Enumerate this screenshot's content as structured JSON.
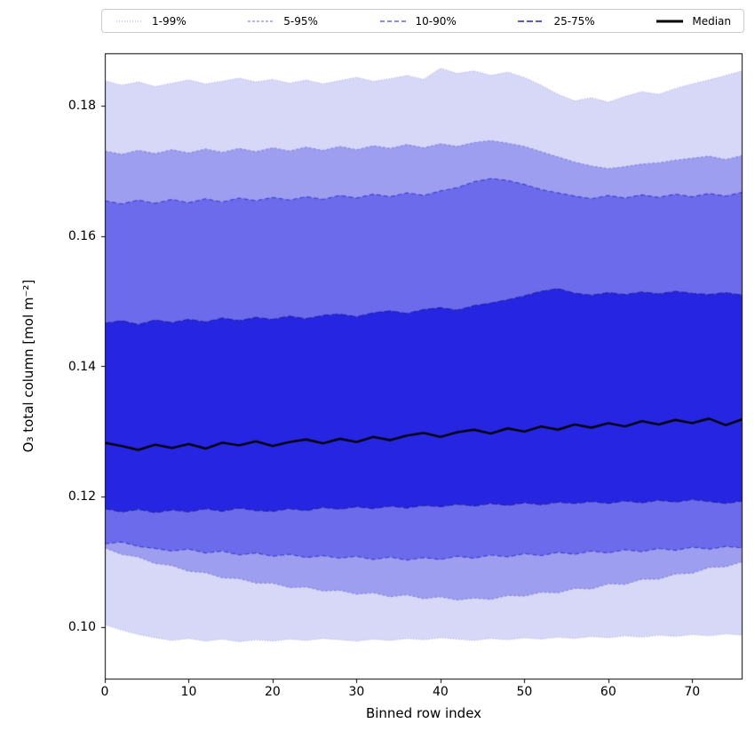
{
  "legend": {
    "entries": [
      {
        "label": "1-99%"
      },
      {
        "label": "5-95%"
      },
      {
        "label": "10-90%"
      },
      {
        "label": "25-75%"
      },
      {
        "label": "Median"
      }
    ]
  },
  "chart_data": {
    "type": "area",
    "title": "",
    "xlabel": "Binned row index",
    "ylabel": "O₃ total column [mol m⁻²]",
    "xlim": [
      0,
      76
    ],
    "ylim": [
      0.092,
      0.188
    ],
    "xticks": [
      0,
      10,
      20,
      30,
      40,
      50,
      60,
      70
    ],
    "yticks": [
      0.1,
      0.12,
      0.14,
      0.16,
      0.18
    ],
    "ytick_labels": [
      "0.10",
      "0.12",
      "0.14",
      "0.16",
      "0.18"
    ],
    "grid": false,
    "legend_position": "top",
    "x": [
      0,
      2,
      4,
      6,
      8,
      10,
      12,
      14,
      16,
      18,
      20,
      22,
      24,
      26,
      28,
      30,
      32,
      34,
      36,
      38,
      40,
      42,
      44,
      46,
      48,
      50,
      52,
      54,
      56,
      58,
      60,
      62,
      64,
      66,
      68,
      70,
      72,
      74,
      76
    ],
    "bands": [
      {
        "name": "1-99%",
        "fill": "#d7d7f8",
        "edge": "#b0b0e0",
        "dash": [
          1,
          2
        ],
        "lower": [
          0.1004,
          0.0996,
          0.0989,
          0.0984,
          0.098,
          0.0983,
          0.0979,
          0.0982,
          0.0978,
          0.0981,
          0.0979,
          0.0982,
          0.098,
          0.0983,
          0.0981,
          0.0979,
          0.0982,
          0.098,
          0.0983,
          0.0981,
          0.0984,
          0.0982,
          0.098,
          0.0983,
          0.0981,
          0.0984,
          0.0982,
          0.0985,
          0.0983,
          0.0986,
          0.0984,
          0.0987,
          0.0985,
          0.0988,
          0.0986,
          0.0989,
          0.0987,
          0.099,
          0.0988
        ],
        "upper": [
          0.1838,
          0.1831,
          0.1836,
          0.1829,
          0.1834,
          0.1839,
          0.1833,
          0.1837,
          0.1842,
          0.1836,
          0.184,
          0.1834,
          0.1839,
          0.1833,
          0.1838,
          0.1843,
          0.1837,
          0.1841,
          0.1846,
          0.184,
          0.1857,
          0.1849,
          0.1853,
          0.1846,
          0.1851,
          0.1843,
          0.1831,
          0.1817,
          0.1807,
          0.1812,
          0.1805,
          0.1814,
          0.1821,
          0.1817,
          0.1826,
          0.1833,
          0.1839,
          0.1846,
          0.1853
        ]
      },
      {
        "name": "5-95%",
        "fill": "#9e9ef1",
        "edge": "#8888dd",
        "dash": [
          3,
          2
        ],
        "lower": [
          0.1122,
          0.1112,
          0.1108,
          0.1098,
          0.1095,
          0.1086,
          0.1084,
          0.1076,
          0.1075,
          0.1068,
          0.1068,
          0.1061,
          0.1062,
          0.1056,
          0.1057,
          0.1051,
          0.1053,
          0.1047,
          0.105,
          0.1044,
          0.1047,
          0.1042,
          0.1045,
          0.1043,
          0.1049,
          0.1048,
          0.1054,
          0.1053,
          0.106,
          0.1059,
          0.1067,
          0.1066,
          0.1074,
          0.1074,
          0.1082,
          0.1083,
          0.1092,
          0.1093,
          0.1101
        ],
        "upper": [
          0.173,
          0.1725,
          0.1731,
          0.1726,
          0.1732,
          0.1727,
          0.1733,
          0.1728,
          0.1734,
          0.1729,
          0.1735,
          0.173,
          0.1736,
          0.1731,
          0.1737,
          0.1732,
          0.1738,
          0.1734,
          0.174,
          0.1735,
          0.1741,
          0.1737,
          0.1743,
          0.1746,
          0.1742,
          0.1737,
          0.1729,
          0.1721,
          0.1713,
          0.1707,
          0.1703,
          0.1706,
          0.171,
          0.1712,
          0.1716,
          0.1719,
          0.1722,
          0.1717,
          0.1723
        ]
      },
      {
        "name": "10-90%",
        "fill": "#6b6bec",
        "edge": "#4444cc",
        "dash": [
          5,
          3
        ],
        "lower": [
          0.1128,
          0.1131,
          0.1124,
          0.1121,
          0.1117,
          0.112,
          0.1114,
          0.1117,
          0.1111,
          0.1114,
          0.1109,
          0.1112,
          0.1107,
          0.111,
          0.1106,
          0.1109,
          0.1104,
          0.1108,
          0.1103,
          0.1107,
          0.1104,
          0.1109,
          0.1106,
          0.1111,
          0.1108,
          0.1113,
          0.111,
          0.1115,
          0.1112,
          0.1117,
          0.1114,
          0.1119,
          0.1116,
          0.1121,
          0.1118,
          0.1123,
          0.112,
          0.1124,
          0.1122
        ],
        "upper": [
          0.1654,
          0.1649,
          0.1655,
          0.165,
          0.1656,
          0.1651,
          0.1657,
          0.1652,
          0.1658,
          0.1654,
          0.1659,
          0.1655,
          0.166,
          0.1656,
          0.1662,
          0.1658,
          0.1664,
          0.166,
          0.1666,
          0.1662,
          0.1669,
          0.1674,
          0.1683,
          0.1688,
          0.1685,
          0.1679,
          0.1671,
          0.1666,
          0.1661,
          0.1657,
          0.1662,
          0.1658,
          0.1663,
          0.1659,
          0.1664,
          0.166,
          0.1665,
          0.1661,
          0.1667
        ]
      },
      {
        "name": "25-75%",
        "fill": "#2626e2",
        "edge": "#2222aa",
        "dash": [
          7,
          3
        ],
        "lower": [
          0.1182,
          0.1177,
          0.1181,
          0.1176,
          0.118,
          0.1177,
          0.1182,
          0.1178,
          0.1183,
          0.1179,
          0.1178,
          0.1182,
          0.1179,
          0.1184,
          0.1181,
          0.1185,
          0.1182,
          0.1186,
          0.1183,
          0.1187,
          0.1185,
          0.1189,
          0.1186,
          0.119,
          0.1187,
          0.1191,
          0.1188,
          0.1192,
          0.119,
          0.1193,
          0.119,
          0.1194,
          0.1191,
          0.1195,
          0.1192,
          0.1196,
          0.1193,
          0.119,
          0.1194
        ],
        "upper": [
          0.1466,
          0.147,
          0.1464,
          0.1471,
          0.1467,
          0.1472,
          0.1468,
          0.1474,
          0.147,
          0.1475,
          0.1472,
          0.1477,
          0.1473,
          0.1478,
          0.148,
          0.1476,
          0.1482,
          0.1485,
          0.1481,
          0.1487,
          0.149,
          0.1486,
          0.1493,
          0.1497,
          0.1502,
          0.1508,
          0.1515,
          0.1519,
          0.1512,
          0.1509,
          0.1513,
          0.151,
          0.1514,
          0.1511,
          0.1515,
          0.1512,
          0.151,
          0.1513,
          0.1509
        ]
      }
    ],
    "median": {
      "name": "Median",
      "color": "#000000",
      "width": 2.4,
      "values": [
        0.1283,
        0.1278,
        0.1272,
        0.128,
        0.1275,
        0.1281,
        0.1274,
        0.1283,
        0.1279,
        0.1285,
        0.1278,
        0.1284,
        0.1288,
        0.1282,
        0.1289,
        0.1284,
        0.1292,
        0.1287,
        0.1294,
        0.1298,
        0.1292,
        0.1299,
        0.1303,
        0.1297,
        0.1305,
        0.13,
        0.1308,
        0.1303,
        0.1311,
        0.1306,
        0.1313,
        0.1308,
        0.1316,
        0.1311,
        0.1318,
        0.1313,
        0.132,
        0.131,
        0.1319
      ]
    }
  }
}
